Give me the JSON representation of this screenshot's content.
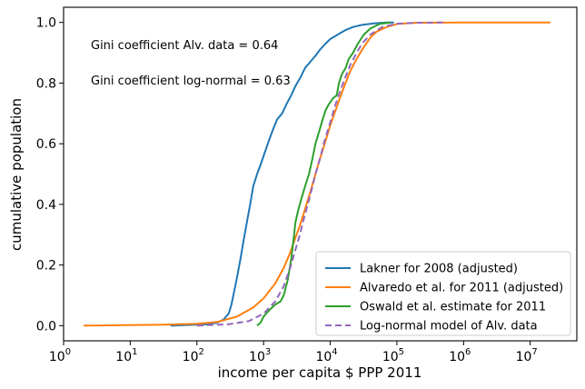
{
  "chart_data": {
    "type": "line",
    "xscale": "log",
    "xlabel": "income per capita $ PPP 2011",
    "ylabel": "cumulative population",
    "xlim": [
      1,
      50000000
    ],
    "ylim": [
      -0.05,
      1.05
    ],
    "grid": false,
    "legend_position": "lower-right",
    "x_ticks": [
      {
        "value": 1,
        "base": "10",
        "exp": "0"
      },
      {
        "value": 10,
        "base": "10",
        "exp": "1"
      },
      {
        "value": 100,
        "base": "10",
        "exp": "2"
      },
      {
        "value": 1000,
        "base": "10",
        "exp": "3"
      },
      {
        "value": 10000,
        "base": "10",
        "exp": "4"
      },
      {
        "value": 100000,
        "base": "10",
        "exp": "5"
      },
      {
        "value": 1000000,
        "base": "10",
        "exp": "6"
      },
      {
        "value": 10000000,
        "base": "10",
        "exp": "7"
      }
    ],
    "y_ticks": [
      {
        "value": 0.0,
        "label": "0.0"
      },
      {
        "value": 0.2,
        "label": "0.2"
      },
      {
        "value": 0.4,
        "label": "0.4"
      },
      {
        "value": 0.6,
        "label": "0.6"
      },
      {
        "value": 0.8,
        "label": "0.8"
      },
      {
        "value": 1.0,
        "label": "1.0"
      }
    ],
    "annotations": [
      "Gini coefficient Alv. data = 0.64",
      "Gini coefficient log-normal = 0.63"
    ],
    "series": [
      {
        "name": "Lakner for 2008 (adjusted)",
        "color": "#1f77b4",
        "dash": "solid",
        "points": [
          [
            40,
            0
          ],
          [
            150,
            0.005
          ],
          [
            200,
            0.01
          ],
          [
            250,
            0.02
          ],
          [
            300,
            0.04
          ],
          [
            330,
            0.07
          ],
          [
            360,
            0.11
          ],
          [
            400,
            0.16
          ],
          [
            450,
            0.22
          ],
          [
            500,
            0.28
          ],
          [
            560,
            0.34
          ],
          [
            630,
            0.4
          ],
          [
            700,
            0.46
          ],
          [
            800,
            0.5
          ],
          [
            900,
            0.53
          ],
          [
            1000,
            0.56
          ],
          [
            1200,
            0.61
          ],
          [
            1400,
            0.65
          ],
          [
            1600,
            0.68
          ],
          [
            1900,
            0.7
          ],
          [
            2200,
            0.73
          ],
          [
            2600,
            0.76
          ],
          [
            3000,
            0.79
          ],
          [
            3600,
            0.82
          ],
          [
            4200,
            0.85
          ],
          [
            5000,
            0.87
          ],
          [
            6000,
            0.89
          ],
          [
            7000,
            0.91
          ],
          [
            8500,
            0.93
          ],
          [
            10000,
            0.945
          ],
          [
            13000,
            0.96
          ],
          [
            17000,
            0.975
          ],
          [
            22000,
            0.985
          ],
          [
            30000,
            0.992
          ],
          [
            45000,
            0.997
          ],
          [
            70000,
            1.0
          ],
          [
            90000,
            1.0
          ]
        ]
      },
      {
        "name": "Alvaredo et al. for 2011 (adjusted)",
        "color": "#ff7f0e",
        "dash": "solid",
        "points": [
          [
            2,
            0
          ],
          [
            30,
            0.003
          ],
          [
            100,
            0.006
          ],
          [
            200,
            0.012
          ],
          [
            400,
            0.03
          ],
          [
            700,
            0.06
          ],
          [
            1000,
            0.09
          ],
          [
            1500,
            0.14
          ],
          [
            2000,
            0.19
          ],
          [
            2500,
            0.24
          ],
          [
            3000,
            0.29
          ],
          [
            3500,
            0.33
          ],
          [
            4000,
            0.37
          ],
          [
            5000,
            0.44
          ],
          [
            6000,
            0.5
          ],
          [
            7000,
            0.55
          ],
          [
            8000,
            0.59
          ],
          [
            10000,
            0.66
          ],
          [
            12000,
            0.71
          ],
          [
            15000,
            0.77
          ],
          [
            20000,
            0.84
          ],
          [
            25000,
            0.88
          ],
          [
            30000,
            0.91
          ],
          [
            40000,
            0.95
          ],
          [
            50000,
            0.97
          ],
          [
            70000,
            0.985
          ],
          [
            100000,
            0.995
          ],
          [
            200000,
            0.999
          ],
          [
            1000000,
            1.0
          ],
          [
            20000000,
            1.0
          ]
        ]
      },
      {
        "name": "Oswald et al. estimate for 2011",
        "color": "#2ca02c",
        "dash": "solid",
        "points": [
          [
            800,
            0
          ],
          [
            900,
            0.01
          ],
          [
            1000,
            0.03
          ],
          [
            1200,
            0.05
          ],
          [
            1500,
            0.07
          ],
          [
            1800,
            0.08
          ],
          [
            2000,
            0.1
          ],
          [
            2300,
            0.15
          ],
          [
            2600,
            0.22
          ],
          [
            2800,
            0.28
          ],
          [
            3000,
            0.34
          ],
          [
            3300,
            0.38
          ],
          [
            3700,
            0.42
          ],
          [
            4200,
            0.46
          ],
          [
            4800,
            0.5
          ],
          [
            5400,
            0.55
          ],
          [
            6000,
            0.6
          ],
          [
            6800,
            0.64
          ],
          [
            7700,
            0.68
          ],
          [
            8500,
            0.71
          ],
          [
            9500,
            0.73
          ],
          [
            11000,
            0.75
          ],
          [
            12500,
            0.76
          ],
          [
            13500,
            0.8
          ],
          [
            15000,
            0.83
          ],
          [
            17000,
            0.85
          ],
          [
            19000,
            0.88
          ],
          [
            22000,
            0.9
          ],
          [
            26000,
            0.93
          ],
          [
            32000,
            0.96
          ],
          [
            40000,
            0.98
          ],
          [
            55000,
            0.995
          ],
          [
            80000,
            1.0
          ]
        ]
      },
      {
        "name": "Log-normal model of Alv. data",
        "color": "#9467bd",
        "dash": "dashed",
        "points": [
          [
            100,
            0
          ],
          [
            300,
            0.005
          ],
          [
            600,
            0.015
          ],
          [
            1000,
            0.04
          ],
          [
            1500,
            0.08
          ],
          [
            2000,
            0.13
          ],
          [
            2500,
            0.19
          ],
          [
            3000,
            0.25
          ],
          [
            3500,
            0.3
          ],
          [
            4000,
            0.35
          ],
          [
            5000,
            0.43
          ],
          [
            6000,
            0.5
          ],
          [
            7000,
            0.55
          ],
          [
            8000,
            0.6
          ],
          [
            10000,
            0.67
          ],
          [
            12000,
            0.73
          ],
          [
            15000,
            0.79
          ],
          [
            20000,
            0.86
          ],
          [
            25000,
            0.9
          ],
          [
            30000,
            0.93
          ],
          [
            40000,
            0.96
          ],
          [
            60000,
            0.985
          ],
          [
            100000,
            0.996
          ],
          [
            200000,
            0.999
          ],
          [
            500000,
            1.0
          ]
        ]
      }
    ]
  }
}
